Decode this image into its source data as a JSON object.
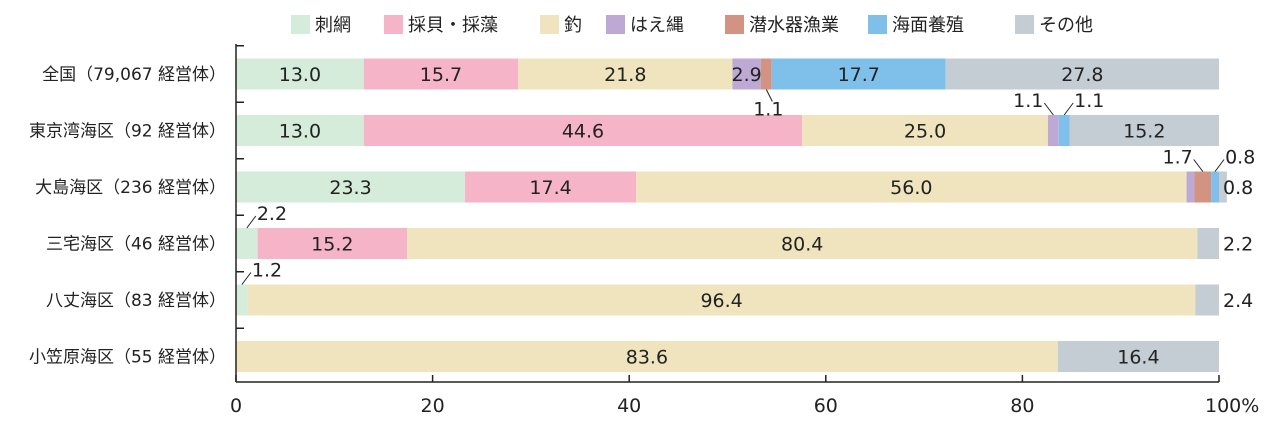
{
  "chart_data": {
    "type": "bar",
    "orientation": "horizontal",
    "stacked": true,
    "xlim": [
      0,
      100
    ],
    "xticks": [
      0,
      20,
      40,
      60,
      80,
      100
    ],
    "xtick_labels": [
      "0",
      "20",
      "40",
      "60",
      "80",
      "100%"
    ],
    "legend_position": "top",
    "grid": false,
    "categories": [
      "全国（79,067 経営体）",
      "東京湾海区（92 経営体）",
      "大島海区（236 経営体）",
      "三宅海区（46 経営体）",
      "八丈海区（83 経営体）",
      "小笠原海区（55 経営体）"
    ],
    "series": [
      {
        "name": "刺網",
        "color": "#d4ecd9",
        "values": [
          13.0,
          13.0,
          23.3,
          2.2,
          1.2,
          0
        ]
      },
      {
        "name": "採貝・採藻",
        "color": "#f5b4c7",
        "values": [
          15.7,
          44.6,
          17.4,
          15.2,
          0,
          0
        ]
      },
      {
        "name": "釣",
        "color": "#efe4bd",
        "values": [
          21.8,
          25.0,
          56.0,
          80.4,
          96.4,
          83.6
        ]
      },
      {
        "name": "はえ縄",
        "color": "#bda9d4",
        "values": [
          2.9,
          1.1,
          0.8,
          0,
          0,
          0
        ]
      },
      {
        "name": "潜水器漁業",
        "color": "#d39382",
        "values": [
          1.1,
          0,
          1.7,
          0,
          0,
          0
        ]
      },
      {
        "name": "海面養殖",
        "color": "#7fc0ea",
        "values": [
          17.7,
          1.1,
          0.8,
          0,
          0,
          0
        ]
      },
      {
        "name": "その他",
        "color": "#c4cdd4",
        "values": [
          27.8,
          15.2,
          0.8,
          2.2,
          2.4,
          16.4
        ]
      }
    ],
    "labels": [
      [
        {
          "s": 0,
          "text": "13.0"
        },
        {
          "s": 1,
          "text": "15.7"
        },
        {
          "s": 2,
          "text": "21.8"
        },
        {
          "s": 3,
          "text": "2.9"
        },
        {
          "s": 4,
          "text": "1.1",
          "pos": "below"
        },
        {
          "s": 5,
          "text": "17.7"
        },
        {
          "s": 6,
          "text": "27.8"
        }
      ],
      [
        {
          "s": 0,
          "text": "13.0"
        },
        {
          "s": 1,
          "text": "44.6"
        },
        {
          "s": 2,
          "text": "25.0"
        },
        {
          "s": 3,
          "text": "1.1",
          "pos": "above-left"
        },
        {
          "s": 5,
          "text": "1.1",
          "pos": "above-right"
        },
        {
          "s": 6,
          "text": "15.2"
        }
      ],
      [
        {
          "s": 0,
          "text": "23.3"
        },
        {
          "s": 1,
          "text": "17.4"
        },
        {
          "s": 2,
          "text": "56.0"
        },
        {
          "s": 4,
          "text": "1.7",
          "pos": "above-left"
        },
        {
          "s": 5,
          "text": "0.8",
          "pos": "above-right"
        },
        {
          "s": 6,
          "text": "0.8",
          "pos": "right"
        }
      ],
      [
        {
          "s": 0,
          "text": "2.2",
          "pos": "above-right"
        },
        {
          "s": 1,
          "text": "15.2"
        },
        {
          "s": 2,
          "text": "80.4"
        },
        {
          "s": 6,
          "text": "2.2",
          "pos": "right"
        }
      ],
      [
        {
          "s": 0,
          "text": "1.2",
          "pos": "above-right"
        },
        {
          "s": 2,
          "text": "96.4"
        },
        {
          "s": 6,
          "text": "2.4",
          "pos": "right"
        }
      ],
      [
        {
          "s": 2,
          "text": "83.6"
        },
        {
          "s": 6,
          "text": "16.4"
        }
      ]
    ]
  }
}
